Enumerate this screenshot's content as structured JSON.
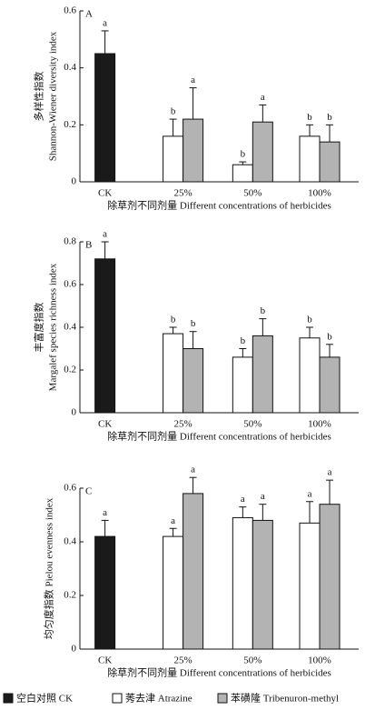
{
  "chart_data": [
    {
      "type": "bar",
      "panel": "A",
      "y_label": [
        "多样性指数",
        "Shannon-Wiener diversity index"
      ],
      "categories": [
        "CK",
        "25%",
        "50%",
        "100%"
      ],
      "x_label": "除草剂不同剂量 Different concentrations of herbicides",
      "ylim": [
        0,
        0.6
      ],
      "yticks": [
        0,
        0.2,
        0.4,
        0.6
      ],
      "series": [
        {
          "color": "#1a1a1a",
          "values": [
            0.45,
            null,
            null,
            null
          ],
          "errors": [
            0.08,
            null,
            null,
            null
          ],
          "letters": [
            "a",
            null,
            null,
            null
          ]
        },
        {
          "color": "#ffffff",
          "values": [
            null,
            0.16,
            0.06,
            0.16
          ],
          "errors": [
            null,
            0.06,
            0.01,
            0.04
          ],
          "letters": [
            null,
            "b",
            "b",
            "b"
          ]
        },
        {
          "color": "#b3b3b3",
          "values": [
            null,
            0.22,
            0.21,
            0.14
          ],
          "errors": [
            null,
            0.11,
            0.06,
            0.06
          ],
          "letters": [
            null,
            "a",
            "a",
            "b"
          ]
        }
      ]
    },
    {
      "type": "bar",
      "panel": "B",
      "y_label": [
        "丰富度指数",
        "Margalef species richness index"
      ],
      "categories": [
        "CK",
        "25%",
        "50%",
        "100%"
      ],
      "x_label": "除草剂不同剂量 Different concentrations of herbicides",
      "ylim": [
        0,
        0.8
      ],
      "yticks": [
        0,
        0.2,
        0.4,
        0.6,
        0.8
      ],
      "series": [
        {
          "color": "#1a1a1a",
          "values": [
            0.72,
            null,
            null,
            null
          ],
          "errors": [
            0.08,
            null,
            null,
            null
          ],
          "letters": [
            "a",
            null,
            null,
            null
          ]
        },
        {
          "color": "#ffffff",
          "values": [
            null,
            0.37,
            0.26,
            0.35
          ],
          "errors": [
            null,
            0.03,
            0.04,
            0.05
          ],
          "letters": [
            null,
            "b",
            "b",
            "b"
          ]
        },
        {
          "color": "#b3b3b3",
          "values": [
            null,
            0.3,
            0.36,
            0.26
          ],
          "errors": [
            null,
            0.08,
            0.08,
            0.06
          ],
          "letters": [
            null,
            "b",
            "b",
            "b"
          ]
        }
      ]
    },
    {
      "type": "bar",
      "panel": "C",
      "y_label": [
        "均匀度指数 Pielou evenness index"
      ],
      "categories": [
        "CK",
        "25%",
        "50%",
        "100%"
      ],
      "x_label": "除草剂不同剂量 Different concentrations of herbicides",
      "ylim": [
        0,
        0.6
      ],
      "yticks": [
        0,
        0.2,
        0.4,
        0.6
      ],
      "series": [
        {
          "name": "空白对照 CK",
          "color": "#1a1a1a",
          "values": [
            0.42,
            null,
            null,
            null
          ],
          "errors": [
            0.06,
            null,
            null,
            null
          ],
          "letters": [
            "a",
            null,
            null,
            null
          ]
        },
        {
          "name": "莠去津 Atrazine",
          "color": "#ffffff",
          "values": [
            null,
            0.42,
            0.49,
            0.47
          ],
          "errors": [
            null,
            0.03,
            0.04,
            0.08
          ],
          "letters": [
            null,
            "a",
            "a",
            "a"
          ]
        },
        {
          "name": "苯磺隆 Tribenuron-methyl",
          "color": "#b3b3b3",
          "values": [
            null,
            0.58,
            0.48,
            0.54
          ],
          "errors": [
            null,
            0.06,
            0.06,
            0.09
          ],
          "letters": [
            null,
            "a",
            "a",
            "a"
          ]
        }
      ]
    }
  ]
}
